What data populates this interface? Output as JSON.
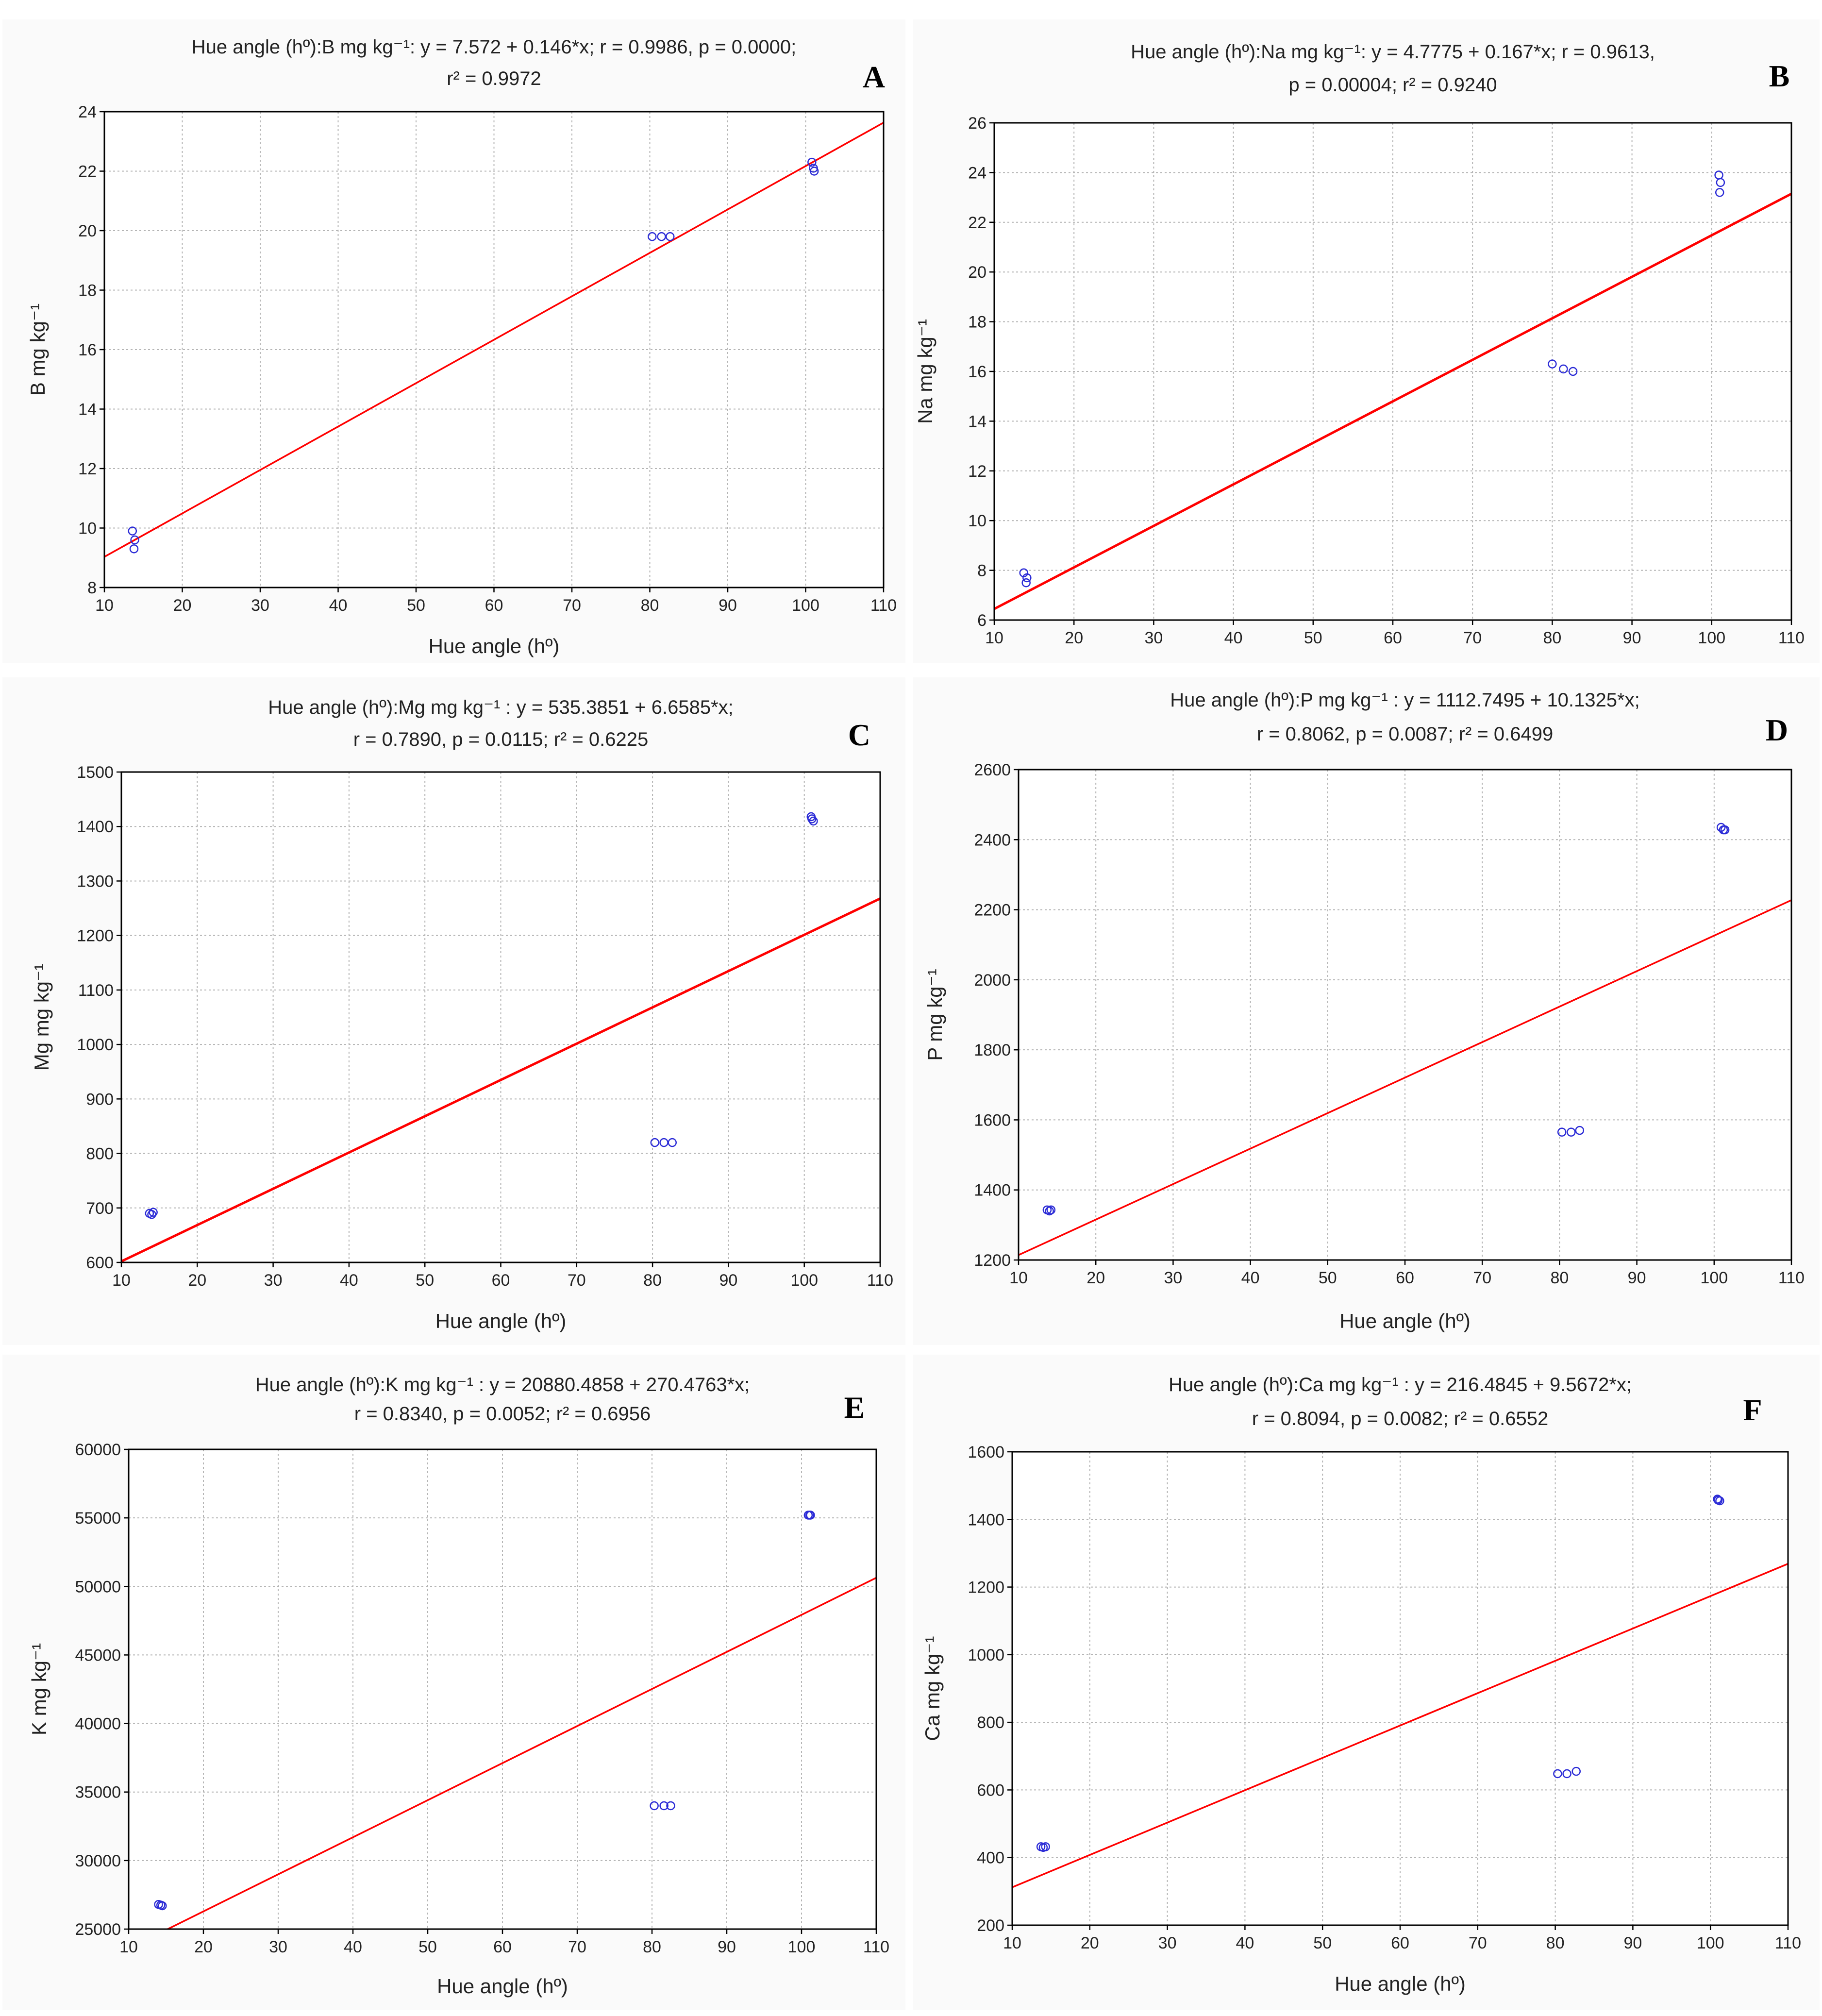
{
  "chart_data": [
    {
      "panel_label": "A",
      "type": "scatter",
      "title_line1": "Hue angle (hº):B mg kg⁻¹:   y = 7.572 + 0.146*x;  r = 0.9986, p = 0.0000;",
      "title_line2": "r² = 0.9972",
      "xlabel": "Hue angle (hº)",
      "ylabel": "B mg kg⁻¹",
      "xlim": [
        10,
        110
      ],
      "ylim": [
        8,
        24
      ],
      "xticks": [
        "10",
        "20",
        "30",
        "40",
        "50",
        "60",
        "70",
        "80",
        "90",
        "100",
        "110"
      ],
      "yticks": [
        "8",
        "10",
        "12",
        "14",
        "16",
        "18",
        "20",
        "22",
        "24"
      ],
      "grid": true,
      "regression": {
        "intercept": 7.572,
        "slope": 0.146
      },
      "points": [
        {
          "x": 13.6,
          "y": 9.9
        },
        {
          "x": 13.9,
          "y": 9.6
        },
        {
          "x": 13.8,
          "y": 9.3
        },
        {
          "x": 80.3,
          "y": 19.8
        },
        {
          "x": 81.5,
          "y": 19.8
        },
        {
          "x": 82.6,
          "y": 19.8
        },
        {
          "x": 100.8,
          "y": 22.3
        },
        {
          "x": 101.1,
          "y": 22.0
        },
        {
          "x": 101.0,
          "y": 22.1
        }
      ]
    },
    {
      "panel_label": "B",
      "type": "scatter",
      "title_line1": "Hue angle (hº):Na mg kg⁻¹:   y = 4.7775 + 0.167*x;  r = 0.9613,",
      "title_line2": "p = 0.00004;  r² = 0.9240",
      "xlabel": "",
      "ylabel": "Na mg kg⁻¹",
      "xlim": [
        10,
        110
      ],
      "ylim": [
        6,
        26
      ],
      "xticks": [
        "10",
        "20",
        "30",
        "40",
        "50",
        "60",
        "70",
        "80",
        "90",
        "100",
        "110"
      ],
      "yticks": [
        "6",
        "8",
        "10",
        "12",
        "14",
        "16",
        "18",
        "20",
        "22",
        "24",
        "26"
      ],
      "grid": true,
      "regression": {
        "intercept": 4.7775,
        "slope": 0.167
      },
      "points": [
        {
          "x": 13.7,
          "y": 7.9
        },
        {
          "x": 14.1,
          "y": 7.7
        },
        {
          "x": 14.0,
          "y": 7.5
        },
        {
          "x": 80.0,
          "y": 16.3
        },
        {
          "x": 81.4,
          "y": 16.1
        },
        {
          "x": 82.6,
          "y": 16.0
        },
        {
          "x": 100.9,
          "y": 23.9
        },
        {
          "x": 101.1,
          "y": 23.6
        },
        {
          "x": 101.0,
          "y": 23.2
        }
      ]
    },
    {
      "panel_label": "C",
      "type": "scatter",
      "title_line1": "Hue angle (hº):Mg mg kg⁻¹ :   y = 535.3851 + 6.6585*x;",
      "title_line2": "r = 0.7890, p = 0.0115; r² = 0.6225",
      "xlabel": "Hue angle (hº)",
      "ylabel": "Mg mg kg⁻¹",
      "xlim": [
        10,
        110
      ],
      "ylim": [
        600,
        1500
      ],
      "xticks": [
        "10",
        "20",
        "30",
        "40",
        "50",
        "60",
        "70",
        "80",
        "90",
        "100",
        "110"
      ],
      "yticks": [
        "600",
        "700",
        "800",
        "900",
        "1000",
        "1100",
        "1200",
        "1300",
        "1400",
        "1500"
      ],
      "grid": true,
      "regression": {
        "intercept": 535.3851,
        "slope": 6.6585
      },
      "points": [
        {
          "x": 13.7,
          "y": 690
        },
        {
          "x": 14.2,
          "y": 692
        },
        {
          "x": 14.0,
          "y": 688
        },
        {
          "x": 80.3,
          "y": 820
        },
        {
          "x": 81.5,
          "y": 820
        },
        {
          "x": 82.6,
          "y": 820
        },
        {
          "x": 100.9,
          "y": 1418
        },
        {
          "x": 101.2,
          "y": 1410
        },
        {
          "x": 101.0,
          "y": 1414
        }
      ]
    },
    {
      "panel_label": "D",
      "type": "scatter",
      "title_line1": "Hue angle (hº):P mg kg⁻¹ :   y = 1112.7495 + 10.1325*x;",
      "title_line2": "r = 0.8062, p = 0.0087; r² = 0.6499",
      "xlabel": "Hue angle (hº)",
      "ylabel": "P mg kg⁻¹",
      "xlim": [
        10,
        110
      ],
      "ylim": [
        1200,
        2600
      ],
      "xticks": [
        "10",
        "20",
        "30",
        "40",
        "50",
        "60",
        "70",
        "80",
        "90",
        "100",
        "110"
      ],
      "yticks": [
        "1200",
        "1400",
        "1600",
        "1800",
        "2000",
        "2200",
        "2400",
        "2600"
      ],
      "grid": true,
      "regression": {
        "intercept": 1112.7495,
        "slope": 10.1325
      },
      "points": [
        {
          "x": 13.7,
          "y": 1343
        },
        {
          "x": 14.2,
          "y": 1343
        },
        {
          "x": 14.0,
          "y": 1340
        },
        {
          "x": 80.3,
          "y": 1565
        },
        {
          "x": 81.5,
          "y": 1565
        },
        {
          "x": 82.6,
          "y": 1570
        },
        {
          "x": 100.9,
          "y": 2435
        },
        {
          "x": 101.2,
          "y": 2428
        },
        {
          "x": 101.4,
          "y": 2428
        }
      ]
    },
    {
      "panel_label": "E",
      "type": "scatter",
      "title_line1": "Hue angle (hº):K mg kg⁻¹ :   y = 20880.4858 + 270.4763*x;",
      "title_line2": "r = 0.8340, p = 0.0052; r² = 0.6956",
      "xlabel": "Hue angle (hº)",
      "ylabel": "K mg kg⁻¹",
      "xlim": [
        10,
        110
      ],
      "ylim": [
        25000,
        60000
      ],
      "xticks": [
        "10",
        "20",
        "30",
        "40",
        "50",
        "60",
        "70",
        "80",
        "90",
        "100",
        "110"
      ],
      "yticks": [
        "25000",
        "30000",
        "35000",
        "40000",
        "45000",
        "50000",
        "55000",
        "60000"
      ],
      "grid": true,
      "regression": {
        "intercept": 20880.4858,
        "slope": 270.4763
      },
      "points": [
        {
          "x": 14.0,
          "y": 26800
        },
        {
          "x": 14.5,
          "y": 26700
        },
        {
          "x": 14.3,
          "y": 26750
        },
        {
          "x": 80.3,
          "y": 34000
        },
        {
          "x": 81.6,
          "y": 34000
        },
        {
          "x": 82.5,
          "y": 34000
        },
        {
          "x": 100.9,
          "y": 55200
        },
        {
          "x": 101.2,
          "y": 55200
        },
        {
          "x": 101.1,
          "y": 55200
        }
      ]
    },
    {
      "panel_label": "F",
      "type": "scatter",
      "title_line1": "Hue angle (hº):Ca mg kg⁻¹ :   y = 216.4845 + 9.5672*x;",
      "title_line2": "r = 0.8094, p = 0.0082; r² = 0.6552",
      "xlabel": "Hue angle (hº)",
      "ylabel": "Ca mg kg⁻¹",
      "xlim": [
        10,
        110
      ],
      "ylim": [
        200,
        1600
      ],
      "xticks": [
        "10",
        "20",
        "30",
        "40",
        "50",
        "60",
        "70",
        "80",
        "90",
        "100",
        "110"
      ],
      "yticks": [
        "200",
        "400",
        "600",
        "800",
        "1000",
        "1200",
        "1400",
        "1600"
      ],
      "grid": true,
      "regression": {
        "intercept": 216.4845,
        "slope": 9.5672
      },
      "points": [
        {
          "x": 13.7,
          "y": 432
        },
        {
          "x": 14.3,
          "y": 432
        },
        {
          "x": 14.0,
          "y": 430
        },
        {
          "x": 80.3,
          "y": 648
        },
        {
          "x": 81.5,
          "y": 648
        },
        {
          "x": 82.7,
          "y": 655
        },
        {
          "x": 100.9,
          "y": 1460
        },
        {
          "x": 101.2,
          "y": 1455
        },
        {
          "x": 101.0,
          "y": 1457
        }
      ]
    }
  ],
  "colors": {
    "regression_line": "#ff0000",
    "points": "#2b2bd6",
    "grid": "#b4b4b4",
    "axis": "#000000",
    "text": "#222222"
  }
}
